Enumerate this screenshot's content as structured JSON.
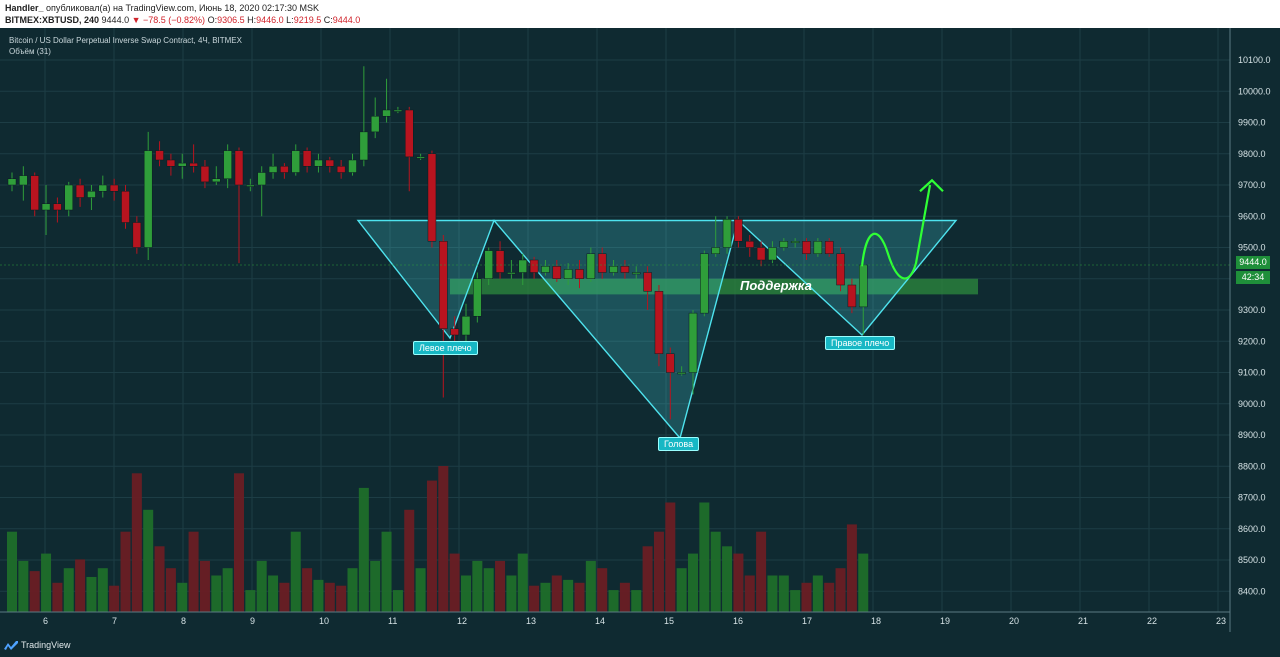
{
  "header": {
    "author": "Handler_",
    "published": "опубликовал(а) на TradingView.com, Июнь 18, 2020 02:17:30 MSK",
    "symbol": "BITMEX:XBTUSD, 240",
    "last": "9444.0",
    "change": "▼ −78.5 (−0.82%)",
    "o_label": "O:",
    "o": "9306.5",
    "h_label": "H:",
    "h": "9446.0",
    "l_label": "L:",
    "l": "9219.5",
    "c_label": "C:",
    "c": "9444.0"
  },
  "legend": {
    "title": "Bitcoin / US Dollar Perpetual Inverse Swap Contract, 4Ч, BITMEX",
    "volume": "Объём (31)"
  },
  "annotations": {
    "left_shoulder": "Левое плечо",
    "head": "Голова",
    "right_shoulder": "Правое плечо",
    "support": "Поддержка"
  },
  "price_tags": {
    "last": "9444.0",
    "countdown": "42:34"
  },
  "footer": {
    "brand": "TradingView"
  },
  "colors": {
    "bg": "#0f2a31",
    "up": "#2f9e3a",
    "down": "#b8141f",
    "pattern": "#4ee3ee",
    "support": "#2e8b3d",
    "arrow": "#2fff35"
  },
  "chart_data": {
    "type": "candlestick",
    "y_ticks": [
      8400,
      8500,
      8600,
      8700,
      8800,
      8900,
      9000,
      9100,
      9200,
      9300,
      9400,
      9500,
      9600,
      9700,
      9800,
      9900,
      10000,
      10100
    ],
    "y_tick_labels": [
      "8400.0",
      "8500.0",
      "8600.0",
      "8700.0",
      "8800.0",
      "8900.0",
      "9000.0",
      "9100.0",
      "9200.0",
      "9300.0",
      "9400.0",
      "9500.0",
      "9600.0",
      "9700.0",
      "9800.0",
      "9900.0",
      "10000.0",
      "10100.0"
    ],
    "x_ticks": [
      "6",
      "7",
      "8",
      "9",
      "10",
      "11",
      "12",
      "13",
      "14",
      "15",
      "16",
      "17",
      "18",
      "19",
      "20",
      "21",
      "22",
      "23"
    ],
    "candles": [
      {
        "o": 9700,
        "c": 9720,
        "h": 9740,
        "l": 9680,
        "v": 0.55
      },
      {
        "o": 9700,
        "c": 9730,
        "h": 9760,
        "l": 9650,
        "v": 0.35
      },
      {
        "o": 9730,
        "c": 9620,
        "h": 9740,
        "l": 9600,
        "v": 0.28
      },
      {
        "o": 9620,
        "c": 9640,
        "h": 9700,
        "l": 9540,
        "v": 0.4
      },
      {
        "o": 9640,
        "c": 9620,
        "h": 9660,
        "l": 9580,
        "v": 0.2
      },
      {
        "o": 9620,
        "c": 9700,
        "h": 9710,
        "l": 9600,
        "v": 0.3
      },
      {
        "o": 9700,
        "c": 9660,
        "h": 9720,
        "l": 9630,
        "v": 0.36
      },
      {
        "o": 9660,
        "c": 9680,
        "h": 9700,
        "l": 9620,
        "v": 0.24
      },
      {
        "o": 9680,
        "c": 9700,
        "h": 9730,
        "l": 9660,
        "v": 0.3
      },
      {
        "o": 9700,
        "c": 9680,
        "h": 9720,
        "l": 9650,
        "v": 0.18
      },
      {
        "o": 9680,
        "c": 9580,
        "h": 9700,
        "l": 9560,
        "v": 0.55
      },
      {
        "o": 9580,
        "c": 9500,
        "h": 9600,
        "l": 9480,
        "v": 0.95
      },
      {
        "o": 9500,
        "c": 9810,
        "h": 9870,
        "l": 9460,
        "v": 0.7
      },
      {
        "o": 9810,
        "c": 9780,
        "h": 9840,
        "l": 9760,
        "v": 0.45
      },
      {
        "o": 9780,
        "c": 9760,
        "h": 9800,
        "l": 9730,
        "v": 0.3
      },
      {
        "o": 9760,
        "c": 9770,
        "h": 9800,
        "l": 9720,
        "v": 0.2
      },
      {
        "o": 9770,
        "c": 9760,
        "h": 9830,
        "l": 9740,
        "v": 0.55
      },
      {
        "o": 9760,
        "c": 9710,
        "h": 9780,
        "l": 9690,
        "v": 0.35
      },
      {
        "o": 9710,
        "c": 9720,
        "h": 9760,
        "l": 9700,
        "v": 0.25
      },
      {
        "o": 9720,
        "c": 9810,
        "h": 9830,
        "l": 9690,
        "v": 0.3
      },
      {
        "o": 9810,
        "c": 9700,
        "h": 9820,
        "l": 9450,
        "v": 0.95
      },
      {
        "o": 9700,
        "c": 9700,
        "h": 9720,
        "l": 9680,
        "v": 0.15
      },
      {
        "o": 9700,
        "c": 9740,
        "h": 9760,
        "l": 9600,
        "v": 0.35
      },
      {
        "o": 9740,
        "c": 9760,
        "h": 9800,
        "l": 9720,
        "v": 0.25
      },
      {
        "o": 9760,
        "c": 9740,
        "h": 9770,
        "l": 9720,
        "v": 0.2
      },
      {
        "o": 9740,
        "c": 9810,
        "h": 9830,
        "l": 9730,
        "v": 0.55
      },
      {
        "o": 9810,
        "c": 9760,
        "h": 9820,
        "l": 9740,
        "v": 0.3
      },
      {
        "o": 9760,
        "c": 9780,
        "h": 9800,
        "l": 9740,
        "v": 0.22
      },
      {
        "o": 9780,
        "c": 9760,
        "h": 9790,
        "l": 9740,
        "v": 0.2
      },
      {
        "o": 9760,
        "c": 9740,
        "h": 9780,
        "l": 9720,
        "v": 0.18
      },
      {
        "o": 9740,
        "c": 9780,
        "h": 9800,
        "l": 9730,
        "v": 0.3
      },
      {
        "o": 9780,
        "c": 9870,
        "h": 10080,
        "l": 9760,
        "v": 0.85
      },
      {
        "o": 9870,
        "c": 9920,
        "h": 9980,
        "l": 9850,
        "v": 0.35
      },
      {
        "o": 9920,
        "c": 9940,
        "h": 10040,
        "l": 9900,
        "v": 0.55
      },
      {
        "o": 9940,
        "c": 9940,
        "h": 9950,
        "l": 9930,
        "v": 0.15
      },
      {
        "o": 9940,
        "c": 9790,
        "h": 9950,
        "l": 9680,
        "v": 0.7
      },
      {
        "o": 9790,
        "c": 9790,
        "h": 9800,
        "l": 9780,
        "v": 0.3
      },
      {
        "o": 9800,
        "c": 9520,
        "h": 9810,
        "l": 9500,
        "v": 0.9
      },
      {
        "o": 9520,
        "c": 9240,
        "h": 9540,
        "l": 9020,
        "v": 1.0
      },
      {
        "o": 9240,
        "c": 9220,
        "h": 9280,
        "l": 9200,
        "v": 0.4
      },
      {
        "o": 9220,
        "c": 9280,
        "h": 9320,
        "l": 9200,
        "v": 0.25
      },
      {
        "o": 9280,
        "c": 9400,
        "h": 9420,
        "l": 9260,
        "v": 0.35
      },
      {
        "o": 9400,
        "c": 9490,
        "h": 9500,
        "l": 9380,
        "v": 0.3
      },
      {
        "o": 9490,
        "c": 9420,
        "h": 9520,
        "l": 9400,
        "v": 0.35
      },
      {
        "o": 9420,
        "c": 9420,
        "h": 9460,
        "l": 9400,
        "v": 0.25
      },
      {
        "o": 9420,
        "c": 9460,
        "h": 9480,
        "l": 9380,
        "v": 0.4
      },
      {
        "o": 9460,
        "c": 9420,
        "h": 9470,
        "l": 9400,
        "v": 0.18
      },
      {
        "o": 9420,
        "c": 9440,
        "h": 9460,
        "l": 9410,
        "v": 0.2
      },
      {
        "o": 9440,
        "c": 9400,
        "h": 9460,
        "l": 9390,
        "v": 0.25
      },
      {
        "o": 9400,
        "c": 9430,
        "h": 9450,
        "l": 9380,
        "v": 0.22
      },
      {
        "o": 9430,
        "c": 9400,
        "h": 9460,
        "l": 9370,
        "v": 0.2
      },
      {
        "o": 9400,
        "c": 9480,
        "h": 9500,
        "l": 9390,
        "v": 0.35
      },
      {
        "o": 9480,
        "c": 9420,
        "h": 9500,
        "l": 9400,
        "v": 0.3
      },
      {
        "o": 9420,
        "c": 9440,
        "h": 9460,
        "l": 9410,
        "v": 0.15
      },
      {
        "o": 9440,
        "c": 9420,
        "h": 9460,
        "l": 9400,
        "v": 0.2
      },
      {
        "o": 9420,
        "c": 9420,
        "h": 9440,
        "l": 9400,
        "v": 0.15
      },
      {
        "o": 9420,
        "c": 9360,
        "h": 9440,
        "l": 9300,
        "v": 0.45
      },
      {
        "o": 9360,
        "c": 9160,
        "h": 9380,
        "l": 9120,
        "v": 0.55
      },
      {
        "o": 9160,
        "c": 9100,
        "h": 9180,
        "l": 8950,
        "v": 0.75
      },
      {
        "o": 9100,
        "c": 9100,
        "h": 9120,
        "l": 9090,
        "v": 0.3
      },
      {
        "o": 9100,
        "c": 9290,
        "h": 9300,
        "l": 9030,
        "v": 0.4
      },
      {
        "o": 9290,
        "c": 9480,
        "h": 9490,
        "l": 9280,
        "v": 0.75
      },
      {
        "o": 9480,
        "c": 9500,
        "h": 9600,
        "l": 9470,
        "v": 0.55
      },
      {
        "o": 9500,
        "c": 9590,
        "h": 9600,
        "l": 9480,
        "v": 0.45
      },
      {
        "o": 9590,
        "c": 9520,
        "h": 9600,
        "l": 9500,
        "v": 0.4
      },
      {
        "o": 9520,
        "c": 9500,
        "h": 9540,
        "l": 9470,
        "v": 0.25
      },
      {
        "o": 9500,
        "c": 9460,
        "h": 9520,
        "l": 9440,
        "v": 0.55
      },
      {
        "o": 9460,
        "c": 9500,
        "h": 9520,
        "l": 9450,
        "v": 0.25
      },
      {
        "o": 9500,
        "c": 9520,
        "h": 9530,
        "l": 9490,
        "v": 0.25
      },
      {
        "o": 9520,
        "c": 9520,
        "h": 9530,
        "l": 9500,
        "v": 0.15
      },
      {
        "o": 9520,
        "c": 9480,
        "h": 9530,
        "l": 9460,
        "v": 0.2
      },
      {
        "o": 9480,
        "c": 9520,
        "h": 9530,
        "l": 9470,
        "v": 0.25
      },
      {
        "o": 9520,
        "c": 9480,
        "h": 9530,
        "l": 9470,
        "v": 0.2
      },
      {
        "o": 9480,
        "c": 9380,
        "h": 9500,
        "l": 9360,
        "v": 0.3
      },
      {
        "o": 9380,
        "c": 9310,
        "h": 9400,
        "l": 9290,
        "v": 0.6
      },
      {
        "o": 9310,
        "c": 9444,
        "h": 9446,
        "l": 9220,
        "v": 0.4
      }
    ],
    "volume_axis": "relative (0–1)",
    "pattern": {
      "type": "inverse head and shoulders",
      "neckline": 9580,
      "left_shoulder": 9210,
      "head": 8890,
      "right_shoulder": 9220,
      "support_zone": [
        9350,
        9400
      ],
      "target_arrow": 9700
    }
  }
}
